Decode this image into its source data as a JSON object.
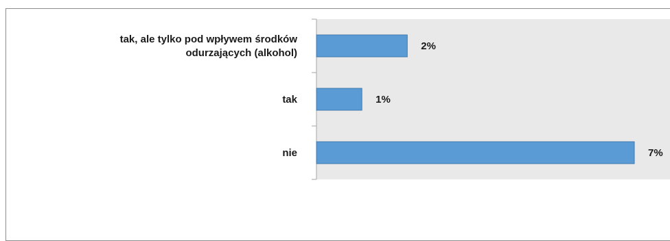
{
  "chart_data": {
    "type": "bar",
    "orientation": "horizontal",
    "categories": [
      [
        "tak, ale tylko pod wpływem środków",
        "odurzających (alkohol)"
      ],
      [
        "tak"
      ],
      [
        "nie"
      ]
    ],
    "values": [
      2,
      1,
      7
    ],
    "value_labels": [
      "2%",
      "1%",
      "7%"
    ],
    "unit": "%",
    "xlim": [
      0,
      7
    ],
    "grid": false,
    "legend": "none",
    "colors": {
      "bar_fill": "#5b9bd5",
      "bar_stroke": "#3e78b0",
      "plot_bg": "#e9e9e9",
      "axis": "#a6a6a6"
    }
  }
}
